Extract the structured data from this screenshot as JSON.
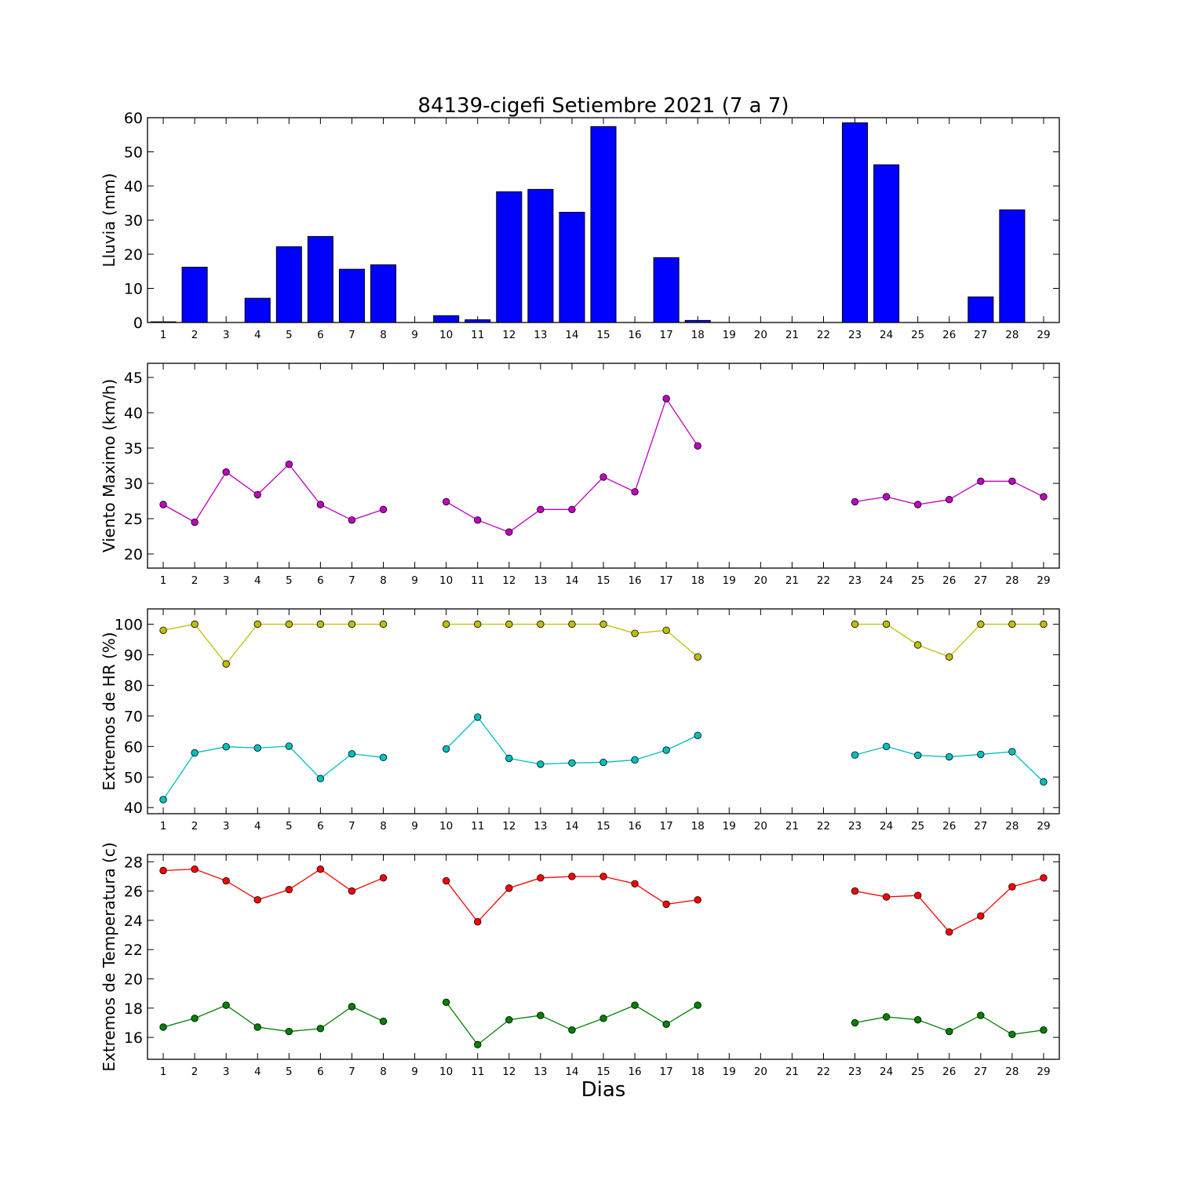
{
  "title": "84139-cigefi Setiembre 2021  (7 a 7)",
  "xlabel": "Dias",
  "days": [
    1,
    2,
    3,
    4,
    5,
    6,
    7,
    8,
    9,
    10,
    11,
    12,
    13,
    14,
    15,
    16,
    17,
    18,
    19,
    20,
    21,
    22,
    23,
    24,
    25,
    26,
    27,
    28,
    29
  ],
  "chart_data": [
    {
      "type": "bar",
      "ylabel": "Lluvia (mm)",
      "ylim": [
        0,
        60
      ],
      "yticks": [
        0,
        10,
        20,
        30,
        40,
        50,
        60
      ],
      "grid": false,
      "series": [
        {
          "color": "#0000ff",
          "values": [
            0.2,
            16.2,
            0,
            7.1,
            22.2,
            25.2,
            15.6,
            16.9,
            0,
            2.0,
            0.8,
            38.3,
            39.0,
            32.3,
            57.4,
            0,
            19.0,
            0.6,
            0,
            0,
            0,
            0,
            58.5,
            46.2,
            0,
            0,
            7.5,
            33.0,
            0
          ]
        }
      ]
    },
    {
      "type": "line",
      "ylabel": "Viento Maximo (km/h)",
      "ylim": [
        18,
        47
      ],
      "yticks": [
        20,
        25,
        30,
        35,
        40,
        45
      ],
      "grid": false,
      "series": [
        {
          "color": "#bf00bf",
          "values": [
            27.0,
            24.5,
            31.6,
            28.4,
            32.7,
            27.0,
            24.8,
            26.3,
            null,
            27.4,
            24.8,
            23.1,
            26.3,
            26.3,
            30.9,
            28.8,
            42.0,
            35.3,
            null,
            null,
            null,
            null,
            27.4,
            28.1,
            27.0,
            27.7,
            30.3,
            30.3,
            28.1
          ]
        }
      ]
    },
    {
      "type": "line",
      "ylabel": "Extremos de HR (%)",
      "ylim": [
        38,
        105
      ],
      "yticks": [
        40,
        50,
        60,
        70,
        80,
        90,
        100
      ],
      "grid": false,
      "series": [
        {
          "color": "#bfbf00",
          "values": [
            98,
            100,
            87,
            100,
            100,
            100,
            100,
            100,
            null,
            100,
            100,
            100,
            100,
            100,
            100,
            97,
            98,
            89.3,
            null,
            null,
            null,
            null,
            100,
            100,
            93.2,
            89.3,
            100,
            100,
            100
          ]
        },
        {
          "color": "#00bfbf",
          "values": [
            42.6,
            57.9,
            59.9,
            59.5,
            60.1,
            49.5,
            57.6,
            56.4,
            null,
            59.2,
            69.6,
            56.1,
            54.2,
            54.6,
            54.8,
            55.6,
            58.8,
            63.6,
            null,
            null,
            null,
            null,
            57.2,
            60.0,
            57.1,
            56.6,
            57.4,
            58.3,
            48.4
          ]
        }
      ]
    },
    {
      "type": "line",
      "ylabel": "Extremos de Temperatura (c)",
      "ylim": [
        14.5,
        28.5
      ],
      "yticks": [
        16,
        18,
        20,
        22,
        24,
        26,
        28
      ],
      "grid": false,
      "series": [
        {
          "color": "#ff0000",
          "values": [
            27.4,
            27.5,
            26.7,
            25.4,
            26.1,
            27.5,
            26.0,
            26.9,
            null,
            26.7,
            23.9,
            26.2,
            26.9,
            27.0,
            27.0,
            26.5,
            25.1,
            25.4,
            null,
            null,
            null,
            null,
            26.0,
            25.6,
            25.7,
            23.2,
            24.3,
            26.3,
            26.9
          ]
        },
        {
          "color": "#008000",
          "values": [
            16.7,
            17.3,
            18.2,
            16.7,
            16.4,
            16.6,
            18.1,
            17.1,
            null,
            18.4,
            15.5,
            17.2,
            17.5,
            16.5,
            17.3,
            18.2,
            16.9,
            18.2,
            null,
            null,
            null,
            null,
            17.0,
            17.4,
            17.2,
            16.4,
            17.5,
            16.2,
            16.5
          ]
        }
      ]
    }
  ]
}
